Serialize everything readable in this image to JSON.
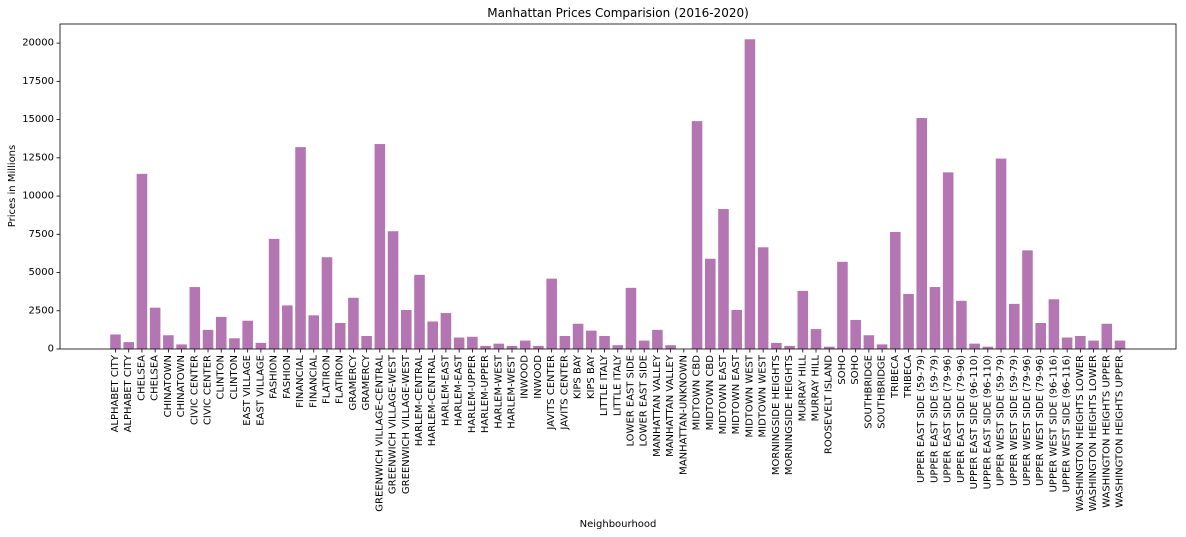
{
  "chart_data": {
    "type": "bar",
    "title": "Manhattan Prices Comparision (2016-2020)",
    "xlabel": "Neighbourhood",
    "ylabel": "Prices in Millions",
    "ylim": [
      0,
      21250
    ],
    "yticks": [
      0,
      2500,
      5000,
      7500,
      10000,
      12500,
      15000,
      17500,
      20000
    ],
    "ytick_labels": [
      "0",
      "2500",
      "5000",
      "7500",
      "10000",
      "12500",
      "15000",
      "17500",
      "20000"
    ],
    "grid": false,
    "legend": "none",
    "bar_color": "#b475b3",
    "categories": [
      "ALPHABET CITY",
      "ALPHABET CITY",
      "CHELSEA",
      "CHELSEA",
      "CHINATOWN",
      "CHINATOWN",
      "CIVIC CENTER",
      "CIVIC CENTER",
      "CLINTON",
      "CLINTON",
      "EAST VILLAGE",
      "EAST VILLAGE",
      "FASHION",
      "FASHION",
      "FINANCIAL",
      "FINANCIAL",
      "FLATIRON",
      "FLATIRON",
      "GRAMERCY",
      "GRAMERCY",
      "GREENWICH VILLAGE-CENTRAL",
      "GREENWICH VILLAGE-WEST",
      "GREENWICH VILLAGE-WEST",
      "HARLEM-CENTRAL",
      "HARLEM-CENTRAL",
      "HARLEM-EAST",
      "HARLEM-EAST",
      "HARLEM-UPPER",
      "HARLEM-UPPER",
      "HARLEM-WEST",
      "HARLEM-WEST",
      "INWOOD",
      "INWOOD",
      "JAVITS CENTER",
      "JAVITS CENTER",
      "KIPS BAY",
      "KIPS BAY",
      "LITTLE ITALY",
      "LITTLE ITALY",
      "LOWER EAST SIDE",
      "LOWER EAST SIDE",
      "MANHATTAN VALLEY",
      "MANHATTAN VALLEY",
      "MANHATTAN-UNKNOWN",
      "MIDTOWN CBD",
      "MIDTOWN CBD",
      "MIDTOWN EAST",
      "MIDTOWN EAST",
      "MIDTOWN WEST",
      "MIDTOWN WEST",
      "MORNINGSIDE HEIGHTS",
      "MORNINGSIDE HEIGHTS",
      "MURRAY HILL",
      "MURRAY HILL",
      "ROOSEVELT ISLAND",
      "SOHO",
      "SOHO",
      "SOUTHBRIDGE",
      "SOUTHBRIDGE",
      "TRIBECA",
      "TRIBECA",
      "UPPER EAST SIDE (59-79)",
      "UPPER EAST SIDE (59-79)",
      "UPPER EAST SIDE (79-96)",
      "UPPER EAST SIDE (79-96)",
      "UPPER EAST SIDE (96-110)",
      "UPPER EAST SIDE (96-110)",
      "UPPER WEST SIDE (59-79)",
      "UPPER WEST SIDE (59-79)",
      "UPPER WEST SIDE (79-96)",
      "UPPER WEST SIDE (79-96)",
      "UPPER WEST SIDE (96-116)",
      "UPPER WEST SIDE (96-116)",
      "WASHINGTON HEIGHTS LOWER",
      "WASHINGTON HEIGHTS LOWER",
      "WASHINGTON HEIGHTS UPPER",
      "WASHINGTON HEIGHTS UPPER"
    ],
    "values": [
      950,
      450,
      11450,
      2700,
      900,
      300,
      4050,
      1250,
      2100,
      700,
      1850,
      400,
      7200,
      2850,
      13200,
      2200,
      6000,
      1700,
      3350,
      850,
      13400,
      7700,
      2550,
      4850,
      1800,
      2350,
      750,
      800,
      200,
      350,
      200,
      550,
      200,
      4600,
      850,
      1650,
      1200,
      850,
      250,
      4000,
      550,
      1250,
      250,
      0,
      14900,
      5900,
      9150,
      2550,
      20250,
      6650,
      400,
      200,
      3800,
      1300,
      150,
      5700,
      1900,
      900,
      300,
      7650,
      3600,
      15100,
      4050,
      11550,
      3150,
      350,
      150,
      12450,
      2950,
      6450,
      1700,
      3250,
      750,
      850,
      550,
      1650,
      550
    ]
  }
}
